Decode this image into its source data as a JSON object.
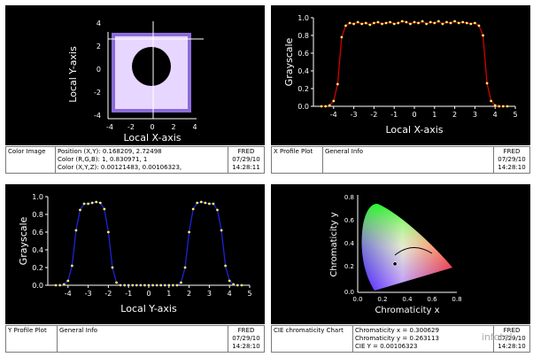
{
  "colors": {
    "background": "#000000",
    "axis": "#ffffff",
    "profile_x": "#d40000",
    "profile_y": "#1c24d8",
    "marker": "#ffee66"
  },
  "panels": {
    "color_image": {
      "xlabel": "Local X-axis",
      "ylabel": "Local Y-axis",
      "xticks": [
        "-4",
        "-2",
        "0",
        "2",
        "4"
      ],
      "yticks": [
        "4",
        "2",
        "0",
        "-2",
        "-4"
      ],
      "info": {
        "title": "Color Image",
        "lines": [
          "Position (X,Y): 0.168209, 2.72498",
          "Color (R,G,B): 1, 0.830971, 1",
          "Color (X,Y,Z): 0.00121483, 0.00106323,"
        ],
        "app": "FRED",
        "date": "07/29/10",
        "time": "14:28:11"
      }
    },
    "x_profile": {
      "info": {
        "title": "X Profile Plot",
        "general": "General Info",
        "app": "FRED",
        "date": "07/29/10",
        "time": "14:28:10"
      }
    },
    "y_profile": {
      "info": {
        "title": "Y Profile Plot",
        "general": "General Info",
        "app": "FRED",
        "date": "07/29/10",
        "time": "14:28:10"
      }
    },
    "cie": {
      "xlabel": "Chromaticity x",
      "ylabel": "Chromaticity y",
      "xticks": [
        "0.0",
        "0.2",
        "0.4",
        "0.6",
        "0.8"
      ],
      "yticks": [
        "0.8",
        "0.6",
        "0.4",
        "0.2",
        "0.0"
      ],
      "info": {
        "title": "CIE chromaticity Chart",
        "lines": [
          "Chromaticity x = 0.300629",
          "Chromaticity y = 0.263113",
          "CIE Y = 0.00106323"
        ],
        "app": "FRED",
        "date": "07/29/10",
        "time": "14:28:10"
      }
    }
  },
  "chart_data": [
    {
      "type": "line",
      "title": "",
      "xlabel": "Local X-axis",
      "ylabel": "Grayscale",
      "xlim": [
        -5,
        5
      ],
      "ylim": [
        0,
        1
      ],
      "grid": false,
      "xticks": [
        "-4",
        "-3",
        "-2",
        "-1",
        "0",
        "1",
        "2",
        "3",
        "4",
        "5"
      ],
      "yticks": [
        "0.0",
        "0.2",
        "0.4",
        "0.6",
        "0.8",
        "1.0"
      ],
      "x": [
        -4.6,
        -4.4,
        -4.2,
        -4.0,
        -3.8,
        -3.6,
        -3.4,
        -3.2,
        -3.0,
        -2.8,
        -2.6,
        -2.4,
        -2.2,
        -2.0,
        -1.8,
        -1.6,
        -1.4,
        -1.2,
        -1.0,
        -0.8,
        -0.6,
        -0.4,
        -0.2,
        0.0,
        0.2,
        0.4,
        0.6,
        0.8,
        1.0,
        1.2,
        1.4,
        1.6,
        1.8,
        2.0,
        2.2,
        2.4,
        2.6,
        2.8,
        3.0,
        3.2,
        3.4,
        3.6,
        3.8,
        4.0,
        4.2,
        4.4,
        4.6
      ],
      "series": [
        {
          "values": [
            0.0,
            0.0,
            0.01,
            0.06,
            0.25,
            0.78,
            0.91,
            0.94,
            0.93,
            0.95,
            0.93,
            0.94,
            0.92,
            0.94,
            0.95,
            0.93,
            0.94,
            0.95,
            0.93,
            0.94,
            0.96,
            0.95,
            0.93,
            0.95,
            0.94,
            0.96,
            0.93,
            0.95,
            0.94,
            0.96,
            0.93,
            0.95,
            0.94,
            0.96,
            0.94,
            0.95,
            0.94,
            0.93,
            0.94,
            0.91,
            0.8,
            0.26,
            0.06,
            0.01,
            0.0,
            0.0,
            0.0
          ]
        }
      ]
    },
    {
      "type": "line",
      "title": "",
      "xlabel": "Local Y-axis",
      "ylabel": "Grayscale",
      "xlim": [
        -5,
        5
      ],
      "ylim": [
        0,
        1
      ],
      "grid": false,
      "xticks": [
        "-4",
        "-3",
        "-2",
        "-1",
        "0",
        "1",
        "2",
        "3",
        "4",
        "5"
      ],
      "yticks": [
        "0.0",
        "0.2",
        "0.4",
        "0.6",
        "0.8",
        "1.0"
      ],
      "x": [
        -4.6,
        -4.4,
        -4.2,
        -4.0,
        -3.8,
        -3.6,
        -3.4,
        -3.2,
        -3.0,
        -2.8,
        -2.6,
        -2.4,
        -2.2,
        -2.0,
        -1.8,
        -1.6,
        -1.4,
        -1.2,
        -1.0,
        -0.8,
        -0.6,
        -0.4,
        -0.2,
        0.0,
        0.2,
        0.4,
        0.6,
        0.8,
        1.0,
        1.2,
        1.4,
        1.6,
        1.8,
        2.0,
        2.2,
        2.4,
        2.6,
        2.8,
        3.0,
        3.2,
        3.4,
        3.6,
        3.8,
        4.0,
        4.2,
        4.4,
        4.6
      ],
      "series": [
        {
          "values": [
            0.0,
            0.0,
            0.01,
            0.05,
            0.22,
            0.62,
            0.85,
            0.92,
            0.92,
            0.93,
            0.94,
            0.93,
            0.86,
            0.6,
            0.2,
            0.03,
            0.0,
            0.0,
            0.0,
            0.0,
            0.0,
            0.0,
            0.0,
            0.0,
            0.0,
            0.0,
            0.0,
            0.0,
            0.0,
            0.0,
            0.0,
            0.03,
            0.2,
            0.6,
            0.86,
            0.93,
            0.94,
            0.93,
            0.92,
            0.92,
            0.85,
            0.62,
            0.22,
            0.05,
            0.01,
            0.0,
            0.0
          ]
        }
      ]
    },
    {
      "type": "scatter",
      "title": "",
      "xlabel": "Chromaticity x",
      "ylabel": "Chromaticity y",
      "xlim": [
        0,
        0.8
      ],
      "ylim": [
        0,
        0.9
      ],
      "grid": false,
      "series": [
        {
          "x": [
            0.300629
          ],
          "y": [
            0.263113
          ]
        }
      ]
    }
  ],
  "watermark": "infotek"
}
